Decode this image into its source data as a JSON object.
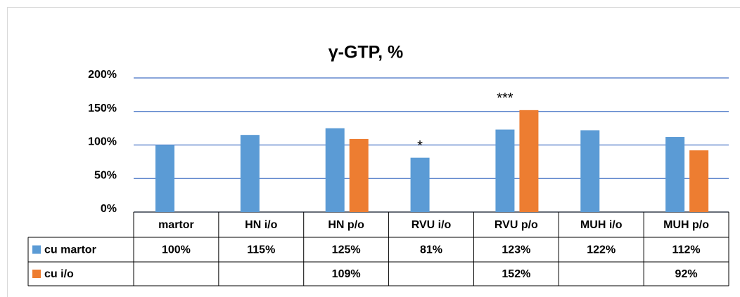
{
  "chart_data": {
    "type": "bar",
    "title": "γ-GTP, %",
    "categories": [
      "martor",
      "HN i/o",
      "HN p/o",
      "RVU i/o",
      "RVU p/o",
      "MUH i/o",
      "MUH p/o"
    ],
    "series": [
      {
        "name": "cu martor",
        "color": "#5b9bd5",
        "values": [
          100,
          115,
          125,
          81,
          123,
          122,
          112
        ],
        "value_labels": [
          "100%",
          "115%",
          "125%",
          "81%",
          "123%",
          "122%",
          "112%"
        ]
      },
      {
        "name": "cu i/o",
        "color": "#ed7d31",
        "values": [
          null,
          null,
          109,
          null,
          152,
          null,
          92
        ],
        "value_labels": [
          null,
          null,
          "109%",
          null,
          "152%",
          null,
          "92%"
        ]
      }
    ],
    "ylim": [
      0,
      200
    ],
    "yticks": [
      {
        "value": 0,
        "label": "0%"
      },
      {
        "value": 50,
        "label": "50%"
      },
      {
        "value": 100,
        "label": "100%"
      },
      {
        "value": 150,
        "label": "150%"
      },
      {
        "value": 200,
        "label": "200%"
      }
    ],
    "grid": true,
    "annotations": [
      {
        "text": "*",
        "category": "RVU i/o"
      },
      {
        "text": "***",
        "category": "RVU p/o"
      }
    ]
  }
}
